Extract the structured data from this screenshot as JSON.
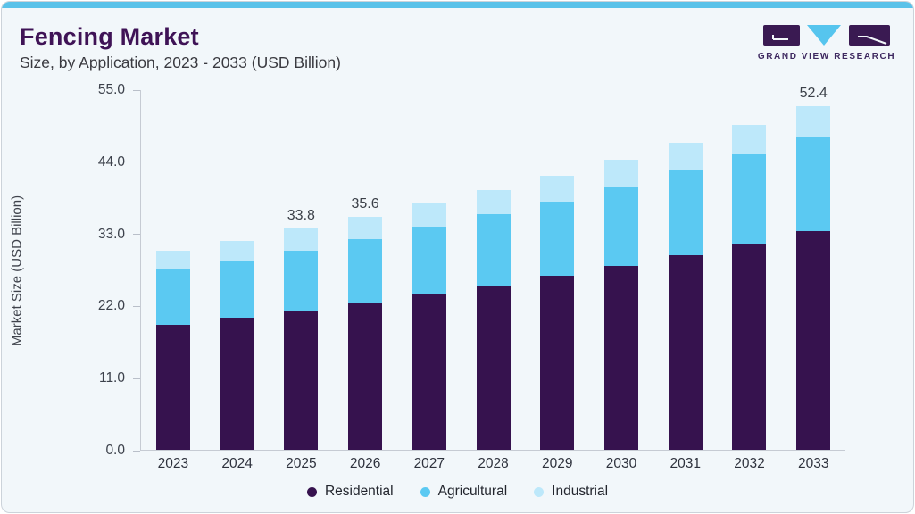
{
  "header": {
    "title": "Fencing Market",
    "subtitle": "Size, by Application, 2023 - 2033 (USD Billion)",
    "logo": {
      "wordmark": "GRAND VIEW RESEARCH"
    }
  },
  "chart_data": {
    "type": "bar",
    "stacked": true,
    "title": "Fencing Market Size, by Application, 2023 - 2033 (USD Billion)",
    "xlabel": "",
    "ylabel": "Market Size (USD Billion)",
    "ylim": [
      0,
      55
    ],
    "yticks": [
      0,
      11,
      22,
      33,
      44,
      55
    ],
    "ytick_labels": [
      "0.0",
      "11.0",
      "22.0",
      "33.0",
      "44.0",
      "55.0"
    ],
    "grid": false,
    "legend_position": "bottom",
    "categories": [
      "2023",
      "2024",
      "2025",
      "2026",
      "2027",
      "2028",
      "2029",
      "2030",
      "2031",
      "2032",
      "2033"
    ],
    "series": [
      {
        "name": "Residential",
        "color": "#36124e",
        "values": [
          19.0,
          20.1,
          21.2,
          22.4,
          23.7,
          25.1,
          26.5,
          28.0,
          29.7,
          31.4,
          33.4
        ]
      },
      {
        "name": "Agricultural",
        "color": "#5bc9f2",
        "values": [
          8.5,
          8.8,
          9.2,
          9.7,
          10.4,
          10.9,
          11.3,
          12.2,
          12.9,
          13.7,
          14.2
        ]
      },
      {
        "name": "Industrial",
        "color": "#bde8fa",
        "values": [
          2.8,
          3.0,
          3.4,
          3.5,
          3.5,
          3.6,
          4.0,
          4.0,
          4.2,
          4.4,
          4.8
        ]
      }
    ],
    "totals": [
      30.3,
      31.9,
      33.8,
      35.6,
      37.6,
      39.6,
      41.8,
      44.2,
      46.8,
      49.5,
      52.4
    ],
    "total_labels_shown": {
      "2025": "33.8",
      "2026": "35.6",
      "2033": "52.4"
    }
  },
  "colors": {
    "accent_bar": "#5ac2e9",
    "card_background": "#f2f7fa",
    "card_border": "#ccd3da",
    "title_text": "#3f1356",
    "axis_line": "#c6cbd3"
  }
}
